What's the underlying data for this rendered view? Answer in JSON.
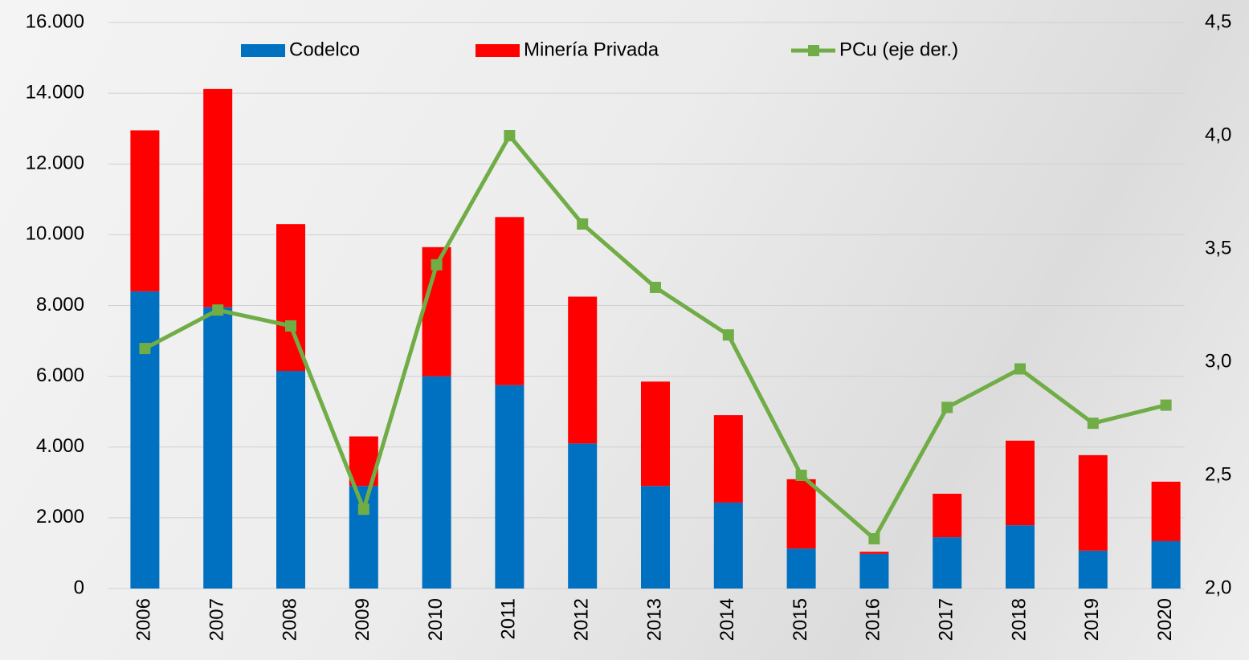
{
  "chart_data": {
    "type": "bar-line",
    "categories": [
      "2006",
      "2007",
      "2008",
      "2009",
      "2010",
      "2011",
      "2012",
      "2013",
      "2014",
      "2015",
      "2016",
      "2017",
      "2018",
      "2019",
      "2020"
    ],
    "series": [
      {
        "name": "Codelco",
        "type": "bar",
        "stack": true,
        "color": "#0070c0",
        "values": [
          8400,
          7950,
          6150,
          2900,
          6000,
          5750,
          4100,
          2900,
          2430,
          1130,
          980,
          1450,
          1790,
          1070,
          1340
        ]
      },
      {
        "name": "Minería Privada",
        "type": "bar",
        "stack": true,
        "color": "#ff0000",
        "values": [
          4550,
          6170,
          4150,
          1400,
          3650,
          4750,
          4150,
          2950,
          2470,
          1960,
          60,
          1230,
          2390,
          2700,
          1680
        ]
      },
      {
        "name": "PCu (eje der.)",
        "type": "line",
        "axis": "y2",
        "color": "#70ad47",
        "values": [
          3.06,
          3.23,
          3.16,
          2.35,
          3.43,
          4.0,
          3.61,
          3.33,
          3.12,
          2.5,
          2.22,
          2.8,
          2.97,
          2.73,
          2.81
        ]
      }
    ],
    "ylim": [
      0,
      16000
    ],
    "yticks": [
      0,
      {
        "value": 2000,
        "label": "2.000"
      },
      {
        "value": 4000,
        "label": "4.000"
      },
      {
        "value": 6000,
        "label": "6.000"
      },
      {
        "value": 8000,
        "label": "8.000"
      },
      {
        "value": 10000,
        "label": "10.000"
      },
      {
        "value": 12000,
        "label": "12.000"
      },
      {
        "value": 14000,
        "label": "14.000"
      },
      {
        "value": 16000,
        "label": "16.000"
      }
    ],
    "y2lim": [
      2.0,
      4.5
    ],
    "y2ticks": [
      {
        "value": 2.0,
        "label": "2,0"
      },
      {
        "value": 2.5,
        "label": "2,5"
      },
      {
        "value": 3.0,
        "label": "3,0"
      },
      {
        "value": 3.5,
        "label": "3,5"
      },
      {
        "value": 4.0,
        "label": "4,0"
      },
      {
        "value": 4.5,
        "label": "4,5"
      }
    ],
    "grid": true,
    "legend": "top"
  }
}
